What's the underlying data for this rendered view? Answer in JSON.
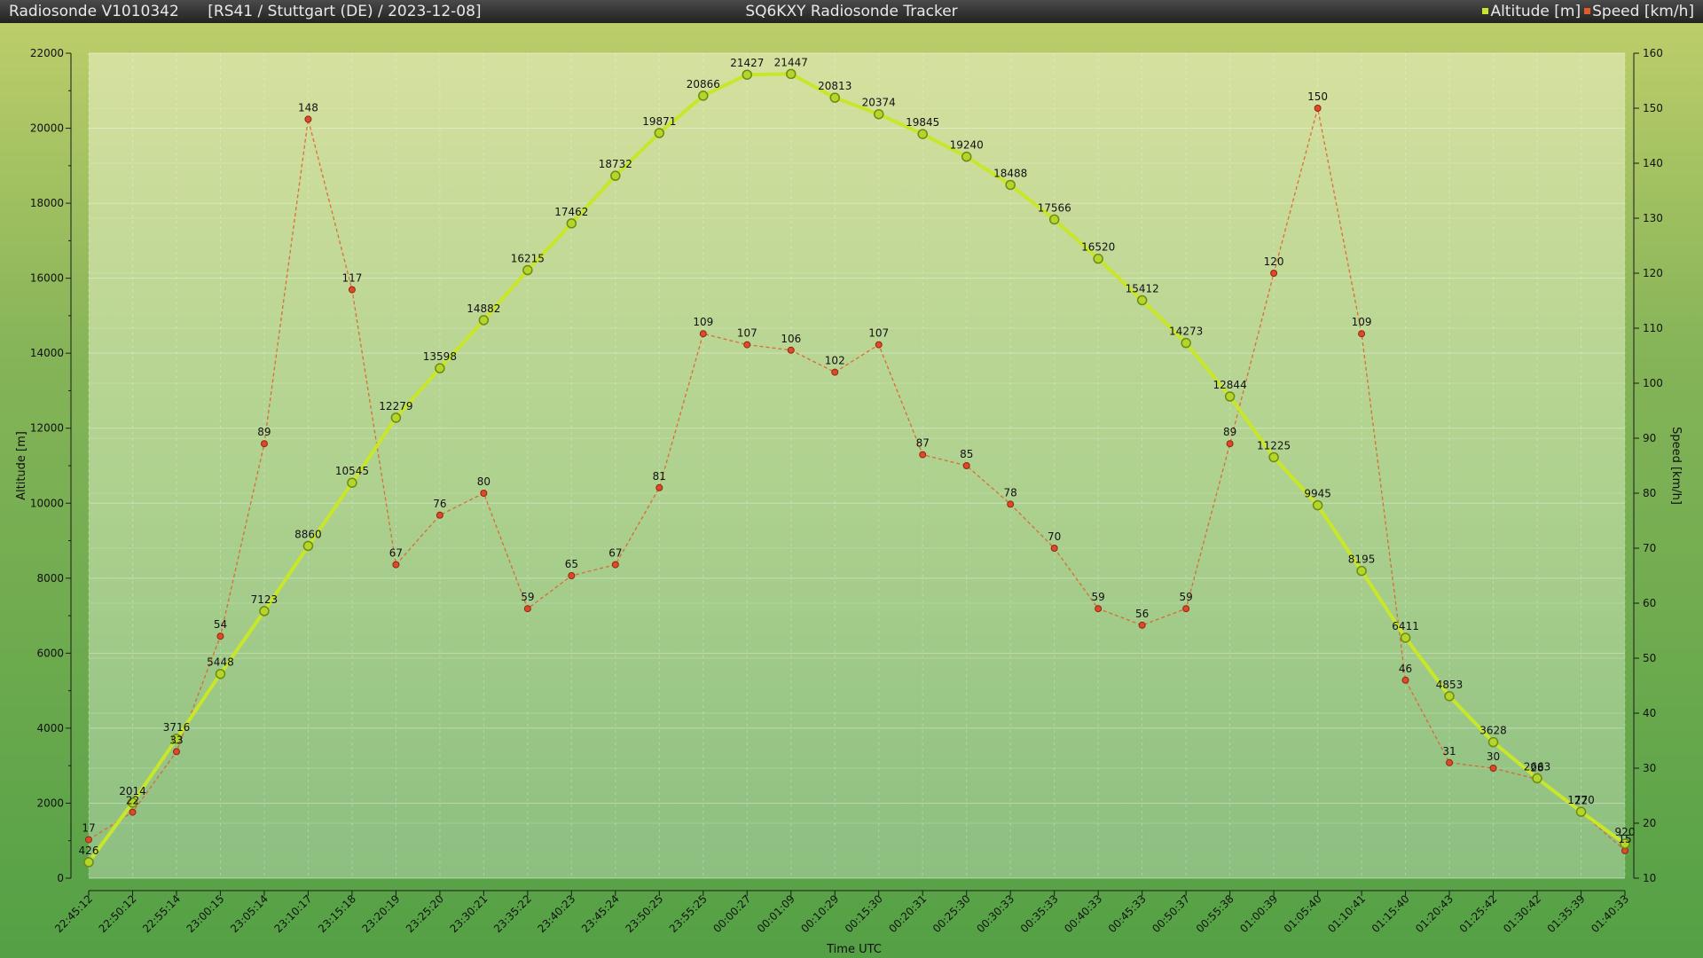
{
  "window": {
    "sonde": "Radiosonde V1010342",
    "info": "[RS41 / Stuttgart (DE) / 2023-12-08]",
    "app_title": "SQ6KXY Radiosonde Tracker"
  },
  "legend": [
    {
      "label": "Altitude [m]",
      "color": "#c8e62a"
    },
    {
      "label": "Speed [km/h]",
      "color": "#e05a2a"
    }
  ],
  "chart_data": {
    "type": "line",
    "xlabel": "Time UTC",
    "ylabel": "Altitude [m]",
    "y2label": "Speed [km/h]",
    "ylim": [
      0,
      22000
    ],
    "y2lim": [
      10,
      160
    ],
    "yticks": [
      0,
      2000,
      4000,
      6000,
      8000,
      10000,
      12000,
      14000,
      16000,
      18000,
      20000,
      22000
    ],
    "y2ticks": [
      10,
      20,
      30,
      40,
      50,
      60,
      70,
      80,
      90,
      100,
      110,
      120,
      130,
      140,
      150,
      160
    ],
    "grid": true,
    "legend_position": "top-right",
    "x": [
      "22:45:12",
      "22:50:12",
      "22:55:14",
      "23:00:15",
      "23:05:14",
      "23:10:17",
      "23:15:18",
      "23:20:19",
      "23:25:20",
      "23:30:21",
      "23:35:22",
      "23:40:23",
      "23:45:24",
      "23:50:25",
      "23:55:25",
      "00:00:27",
      "00:01:09",
      "00:10:29",
      "00:15:30",
      "00:20:31",
      "00:25:30",
      "00:30:33",
      "00:35:33",
      "00:40:33",
      "00:45:33",
      "00:50:37",
      "00:55:38",
      "01:00:39",
      "01:05:40",
      "01:10:41",
      "01:15:40",
      "01:20:43",
      "01:25:42",
      "01:30:42",
      "01:35:39",
      "01:40:33"
    ],
    "series": [
      {
        "name": "Altitude [m]",
        "axis": "left",
        "color": "#c8e62a",
        "values": [
          426,
          2014,
          3716,
          5448,
          7123,
          8860,
          10545,
          12279,
          13598,
          14882,
          16215,
          17462,
          18732,
          19871,
          20866,
          21427,
          21447,
          20813,
          20374,
          19845,
          19240,
          18488,
          17566,
          16520,
          15412,
          14273,
          12844,
          11225,
          9945,
          8195,
          6411,
          4853,
          3628,
          2663,
          1770,
          920
        ]
      },
      {
        "name": "Speed [km/h]",
        "axis": "right",
        "color": "#e05a2a",
        "values": [
          17,
          22,
          33,
          54,
          89,
          148,
          117,
          67,
          76,
          80,
          59,
          65,
          67,
          81,
          109,
          107,
          106,
          102,
          107,
          87,
          85,
          78,
          70,
          59,
          56,
          59,
          89,
          120,
          150,
          109,
          46,
          31,
          30,
          28,
          22,
          15
        ]
      }
    ]
  }
}
